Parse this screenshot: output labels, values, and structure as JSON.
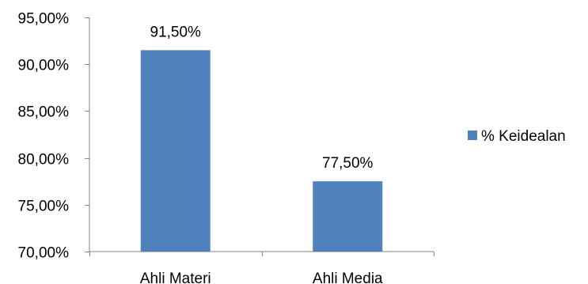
{
  "chart_data": {
    "type": "bar",
    "title": "",
    "xlabel": "",
    "ylabel": "",
    "categories": [
      "Ahli Materi",
      "Ahli Media"
    ],
    "series": [
      {
        "name": "% Keidealan",
        "values": [
          91.5,
          77.5
        ],
        "color": "#4F81BD"
      }
    ],
    "data_labels": [
      "91,50%",
      "77,50%"
    ],
    "ylim": [
      70,
      95
    ],
    "y_ticks": [
      70,
      75,
      80,
      85,
      90,
      95
    ],
    "y_tick_labels": [
      "70,00%",
      "75,00%",
      "80,00%",
      "85,00%",
      "90,00%",
      "95,00%"
    ],
    "grid": false,
    "legend": {
      "position": "right",
      "entries": [
        "% Keidealan"
      ]
    }
  }
}
